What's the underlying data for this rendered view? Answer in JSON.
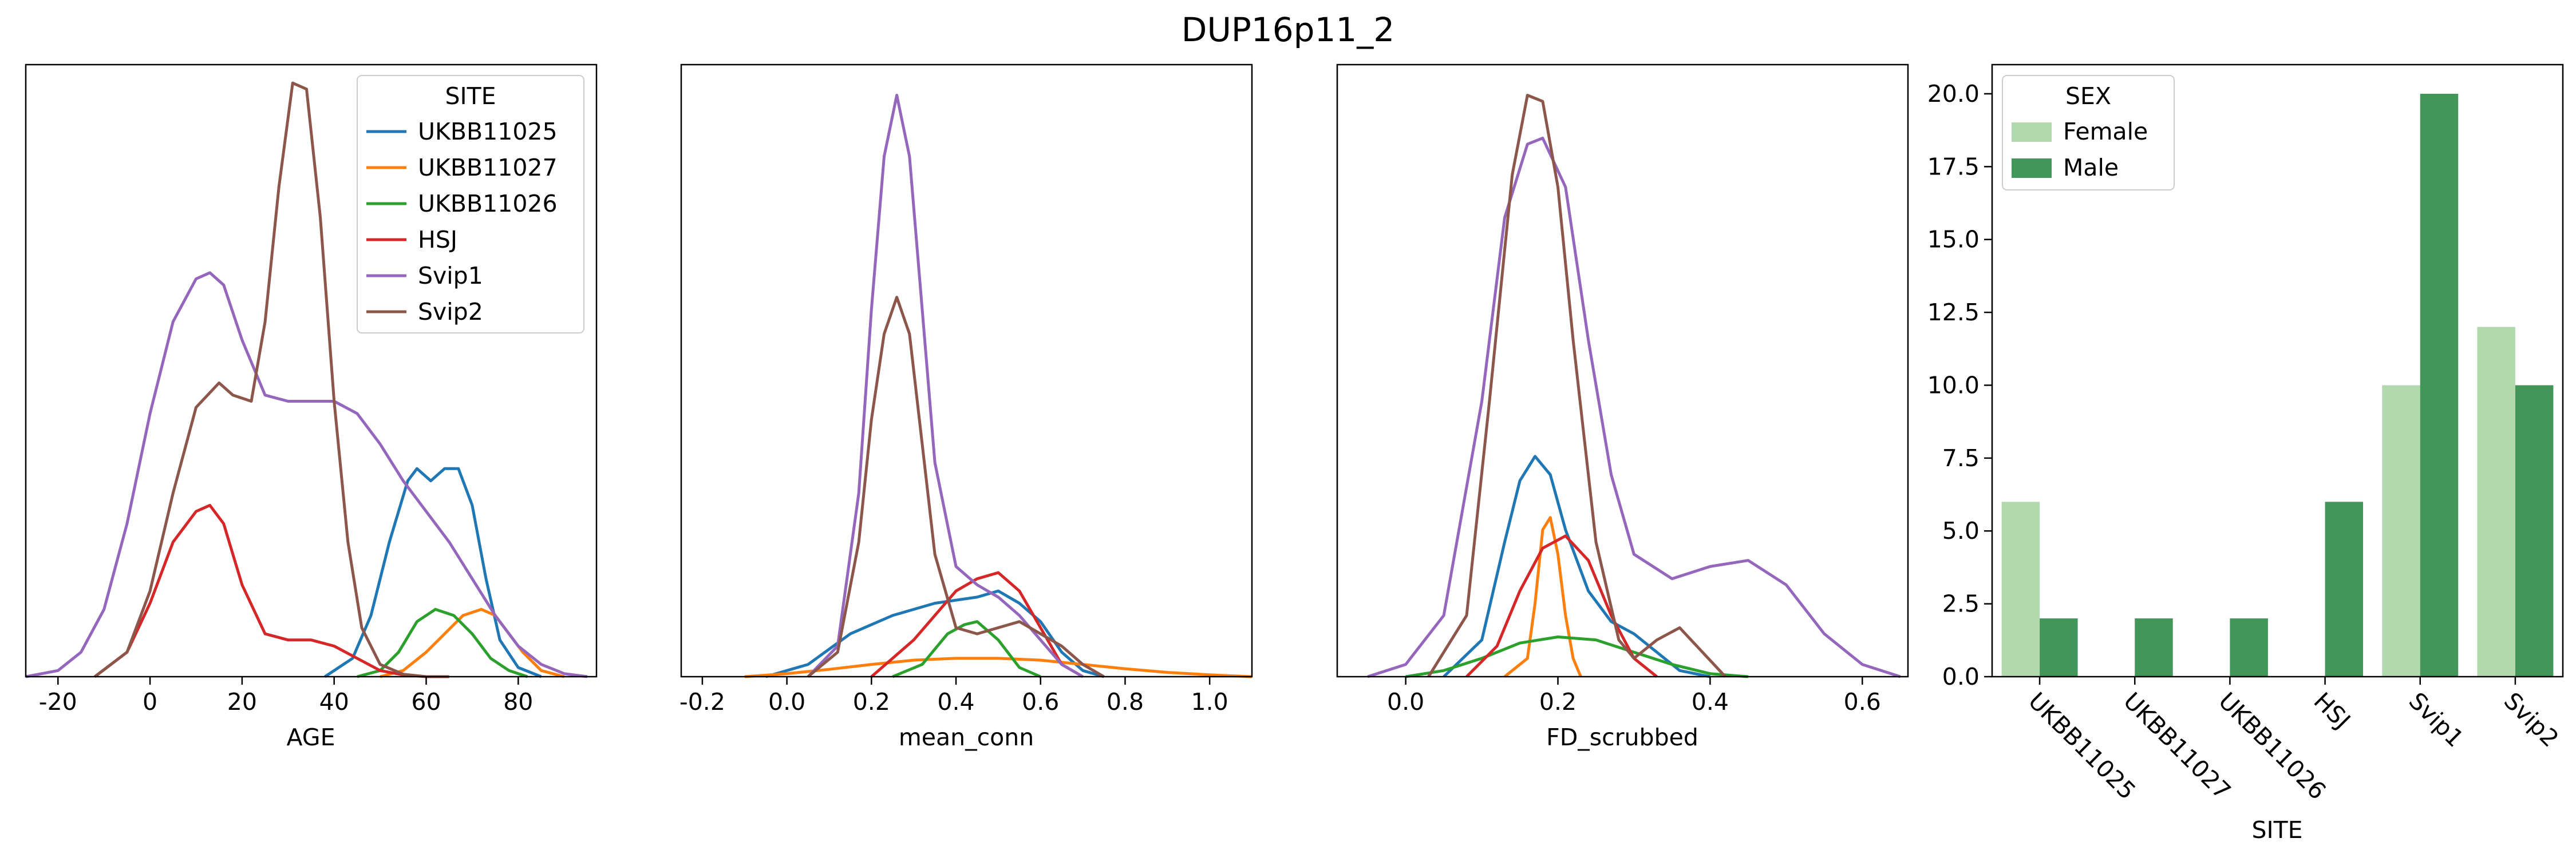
{
  "figure": {
    "title": "DUP16p11_2"
  },
  "colors": {
    "UKBB11025": "#1f77b4",
    "UKBB11027": "#ff7f0e",
    "UKBB11026": "#2ca02c",
    "HSJ": "#d62728",
    "Svip1": "#9467bd",
    "Svip2": "#8c564b",
    "Female": "#b2d9ae",
    "Male": "#43965a"
  },
  "chart_data": [
    {
      "type": "line",
      "subtype": "kde",
      "xlabel": "AGE",
      "xlim": [
        -27,
        97
      ],
      "ylim": [
        0,
        1
      ],
      "xticks": [
        -20,
        0,
        20,
        40,
        60,
        80
      ],
      "y_axis_hidden": true,
      "legend": {
        "title": "SITE",
        "placement": "top-right",
        "entries": [
          "UKBB11025",
          "UKBB11027",
          "UKBB11026",
          "HSJ",
          "Svip1",
          "Svip2"
        ]
      },
      "series": [
        {
          "name": "UKBB11025",
          "x": [
            38,
            44,
            48,
            52,
            56,
            58,
            61,
            64,
            67,
            70,
            73,
            76,
            80,
            85
          ],
          "y": [
            0.0,
            0.03,
            0.1,
            0.22,
            0.32,
            0.34,
            0.32,
            0.34,
            0.34,
            0.28,
            0.16,
            0.06,
            0.015,
            0.0
          ]
        },
        {
          "name": "UKBB11027",
          "x": [
            50,
            55,
            60,
            64,
            68,
            72,
            75,
            78,
            81,
            85,
            90
          ],
          "y": [
            0.0,
            0.01,
            0.04,
            0.07,
            0.1,
            0.11,
            0.1,
            0.07,
            0.04,
            0.01,
            0.0
          ]
        },
        {
          "name": "UKBB11026",
          "x": [
            45,
            50,
            54,
            58,
            62,
            66,
            70,
            74,
            78,
            82
          ],
          "y": [
            0.0,
            0.01,
            0.04,
            0.09,
            0.11,
            0.1,
            0.07,
            0.03,
            0.01,
            0.0
          ]
        },
        {
          "name": "HSJ",
          "x": [
            -12,
            -5,
            0,
            5,
            10,
            13,
            16,
            20,
            25,
            30,
            35,
            40,
            45,
            50,
            55,
            60
          ],
          "y": [
            0.0,
            0.04,
            0.12,
            0.22,
            0.27,
            0.28,
            0.25,
            0.15,
            0.07,
            0.06,
            0.06,
            0.05,
            0.03,
            0.01,
            0.003,
            0.0
          ]
        },
        {
          "name": "Svip1",
          "x": [
            -27,
            -20,
            -15,
            -10,
            -5,
            0,
            5,
            10,
            13,
            16,
            20,
            25,
            30,
            35,
            40,
            45,
            50,
            55,
            60,
            65,
            70,
            75,
            80,
            85,
            90,
            95
          ],
          "y": [
            0.0,
            0.01,
            0.04,
            0.11,
            0.25,
            0.43,
            0.58,
            0.65,
            0.66,
            0.64,
            0.55,
            0.46,
            0.45,
            0.45,
            0.45,
            0.43,
            0.38,
            0.32,
            0.27,
            0.22,
            0.16,
            0.1,
            0.05,
            0.02,
            0.005,
            0.0
          ]
        },
        {
          "name": "Svip2",
          "x": [
            -12,
            -5,
            0,
            5,
            10,
            15,
            18,
            22,
            25,
            28,
            31,
            34,
            37,
            40,
            43,
            46,
            50,
            55,
            60,
            65
          ],
          "y": [
            0.0,
            0.04,
            0.14,
            0.3,
            0.44,
            0.48,
            0.46,
            0.45,
            0.58,
            0.8,
            0.97,
            0.96,
            0.75,
            0.45,
            0.22,
            0.08,
            0.02,
            0.004,
            0.0,
            0.0
          ]
        }
      ]
    },
    {
      "type": "line",
      "subtype": "kde",
      "xlabel": "mean_conn",
      "xlim": [
        -0.25,
        1.1
      ],
      "ylim": [
        0,
        1
      ],
      "xticks": [
        -0.2,
        0.0,
        0.2,
        0.4,
        0.6,
        0.8,
        1.0
      ],
      "y_axis_hidden": true,
      "series": [
        {
          "name": "UKBB11025",
          "x": [
            -0.05,
            0.05,
            0.15,
            0.25,
            0.35,
            0.45,
            0.5,
            0.55,
            0.6,
            0.65,
            0.7,
            0.75
          ],
          "y": [
            0.0,
            0.02,
            0.07,
            0.1,
            0.12,
            0.13,
            0.14,
            0.12,
            0.09,
            0.04,
            0.01,
            0.0
          ]
        },
        {
          "name": "UKBB11027",
          "x": [
            -0.1,
            0.0,
            0.1,
            0.2,
            0.3,
            0.4,
            0.5,
            0.6,
            0.7,
            0.8,
            0.9,
            1.0,
            1.1
          ],
          "y": [
            0.0,
            0.005,
            0.012,
            0.02,
            0.027,
            0.03,
            0.03,
            0.027,
            0.02,
            0.013,
            0.007,
            0.003,
            0.0
          ]
        },
        {
          "name": "UKBB11026",
          "x": [
            0.25,
            0.32,
            0.38,
            0.42,
            0.45,
            0.5,
            0.55,
            0.6
          ],
          "y": [
            0.0,
            0.02,
            0.07,
            0.085,
            0.09,
            0.06,
            0.015,
            0.0
          ]
        },
        {
          "name": "HSJ",
          "x": [
            0.2,
            0.3,
            0.35,
            0.4,
            0.45,
            0.5,
            0.55,
            0.6,
            0.65,
            0.7
          ],
          "y": [
            0.0,
            0.06,
            0.1,
            0.14,
            0.16,
            0.17,
            0.14,
            0.08,
            0.02,
            0.0
          ]
        },
        {
          "name": "Svip1",
          "x": [
            0.05,
            0.12,
            0.17,
            0.2,
            0.23,
            0.26,
            0.29,
            0.32,
            0.35,
            0.4,
            0.45,
            0.5,
            0.55,
            0.6,
            0.65,
            0.7
          ],
          "y": [
            0.0,
            0.05,
            0.3,
            0.6,
            0.85,
            0.95,
            0.85,
            0.6,
            0.35,
            0.18,
            0.15,
            0.13,
            0.1,
            0.06,
            0.02,
            0.0
          ]
        },
        {
          "name": "Svip2",
          "x": [
            0.05,
            0.12,
            0.17,
            0.2,
            0.23,
            0.26,
            0.29,
            0.32,
            0.35,
            0.4,
            0.45,
            0.5,
            0.55,
            0.6,
            0.65,
            0.7,
            0.75
          ],
          "y": [
            0.0,
            0.04,
            0.22,
            0.42,
            0.56,
            0.62,
            0.56,
            0.38,
            0.2,
            0.08,
            0.07,
            0.08,
            0.09,
            0.07,
            0.05,
            0.02,
            0.0
          ]
        }
      ]
    },
    {
      "type": "line",
      "subtype": "kde",
      "xlabel": "FD_scrubbed",
      "xlim": [
        -0.09,
        0.66
      ],
      "ylim": [
        0,
        1
      ],
      "xticks": [
        0.0,
        0.2,
        0.4,
        0.6
      ],
      "y_axis_hidden": true,
      "series": [
        {
          "name": "UKBB11025",
          "x": [
            0.05,
            0.1,
            0.13,
            0.15,
            0.17,
            0.19,
            0.21,
            0.24,
            0.27,
            0.3,
            0.33,
            0.36,
            0.4
          ],
          "y": [
            0.0,
            0.06,
            0.22,
            0.32,
            0.36,
            0.33,
            0.24,
            0.14,
            0.09,
            0.07,
            0.04,
            0.01,
            0.0
          ]
        },
        {
          "name": "UKBB11027",
          "x": [
            0.13,
            0.16,
            0.17,
            0.18,
            0.19,
            0.2,
            0.21,
            0.22,
            0.23
          ],
          "y": [
            0.0,
            0.03,
            0.12,
            0.24,
            0.26,
            0.2,
            0.1,
            0.03,
            0.0
          ]
        },
        {
          "name": "UKBB11026",
          "x": [
            0.0,
            0.05,
            0.1,
            0.15,
            0.2,
            0.25,
            0.3,
            0.35,
            0.4,
            0.45
          ],
          "y": [
            0.0,
            0.01,
            0.03,
            0.055,
            0.065,
            0.06,
            0.04,
            0.02,
            0.005,
            0.0
          ]
        },
        {
          "name": "HSJ",
          "x": [
            0.08,
            0.12,
            0.15,
            0.18,
            0.21,
            0.24,
            0.27,
            0.3,
            0.33
          ],
          "y": [
            0.0,
            0.05,
            0.14,
            0.21,
            0.23,
            0.19,
            0.1,
            0.03,
            0.0
          ]
        },
        {
          "name": "Svip1",
          "x": [
            -0.05,
            0.0,
            0.05,
            0.1,
            0.13,
            0.16,
            0.18,
            0.21,
            0.24,
            0.27,
            0.3,
            0.35,
            0.4,
            0.45,
            0.5,
            0.55,
            0.6,
            0.65
          ],
          "y": [
            0.0,
            0.02,
            0.1,
            0.45,
            0.75,
            0.87,
            0.88,
            0.8,
            0.55,
            0.33,
            0.2,
            0.16,
            0.18,
            0.19,
            0.15,
            0.07,
            0.02,
            0.0
          ]
        },
        {
          "name": "Svip2",
          "x": [
            0.03,
            0.08,
            0.11,
            0.14,
            0.16,
            0.18,
            0.2,
            0.22,
            0.25,
            0.28,
            0.3,
            0.33,
            0.36,
            0.39,
            0.42
          ],
          "y": [
            0.0,
            0.1,
            0.45,
            0.82,
            0.95,
            0.94,
            0.8,
            0.55,
            0.22,
            0.06,
            0.03,
            0.06,
            0.08,
            0.04,
            0.0
          ]
        }
      ]
    },
    {
      "type": "bar",
      "xlabel": "SITE",
      "ylabel": "",
      "ylim": [
        0,
        21
      ],
      "yticks": [
        0.0,
        2.5,
        5.0,
        7.5,
        10.0,
        12.5,
        15.0,
        17.5,
        20.0
      ],
      "ytick_labels": [
        "0.0",
        "2.5",
        "5.0",
        "7.5",
        "10.0",
        "12.5",
        "15.0",
        "17.5",
        "20.0"
      ],
      "categories": [
        "UKBB11025",
        "UKBB11027",
        "UKBB11026",
        "HSJ",
        "Svip1",
        "Svip2"
      ],
      "legend": {
        "title": "SEX",
        "placement": "top-left",
        "entries": [
          "Female",
          "Male"
        ]
      },
      "series": [
        {
          "name": "Female",
          "values": [
            6,
            0,
            0,
            0,
            10,
            12
          ]
        },
        {
          "name": "Male",
          "values": [
            2,
            2,
            2,
            6,
            20,
            10
          ]
        }
      ]
    }
  ]
}
